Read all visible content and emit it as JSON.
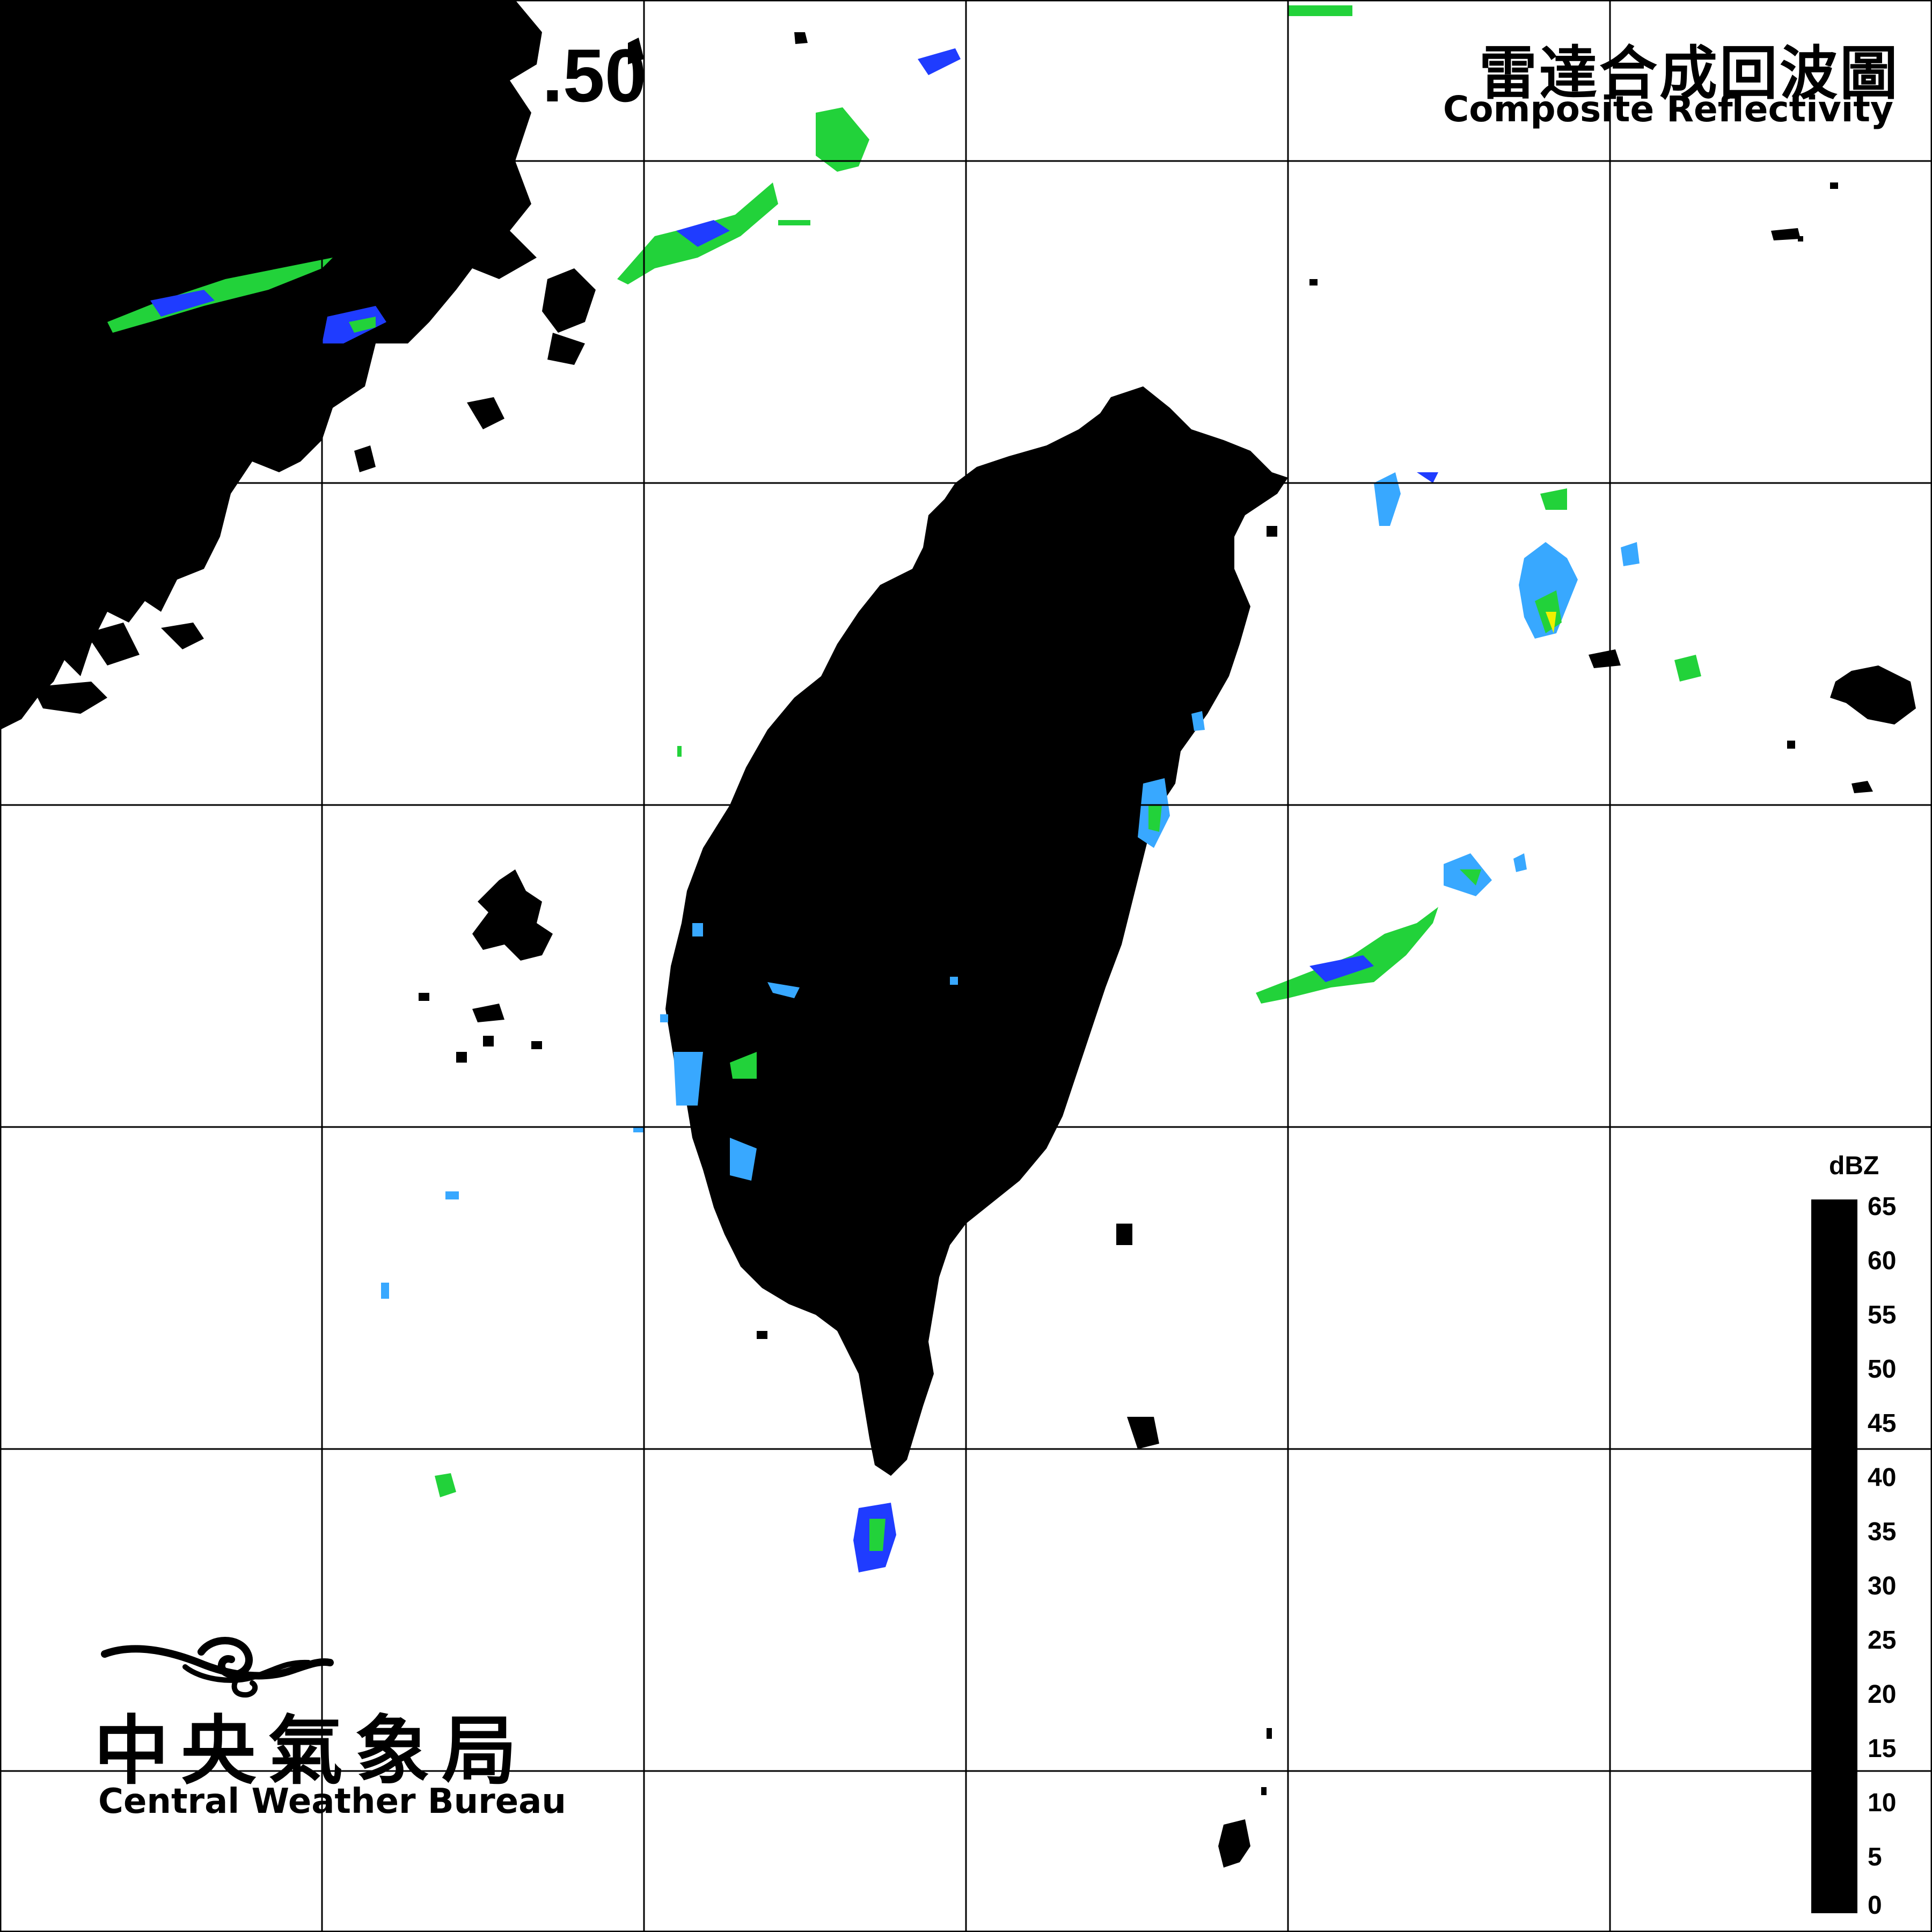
{
  "header": {
    "title_zh": "雷達合成回波圖",
    "title_en": "Composite Reflectivity",
    "timestamp": ".50"
  },
  "legend": {
    "unit": "dBZ",
    "ticks": [
      "65",
      "60",
      "55",
      "50",
      "45",
      "40",
      "35",
      "30",
      "25",
      "20",
      "15",
      "10",
      "5",
      "0"
    ]
  },
  "agency": {
    "name_zh": "中央氣象局",
    "name_en": "Central Weather Bureau"
  },
  "colors": {
    "land": "#000000",
    "ocean": "#ffffff",
    "grid": "#000000",
    "echo_light_blue": "#38a8ff",
    "echo_blue": "#1f3cff",
    "echo_green": "#22d23a",
    "echo_yellow": "#f0f000"
  }
}
